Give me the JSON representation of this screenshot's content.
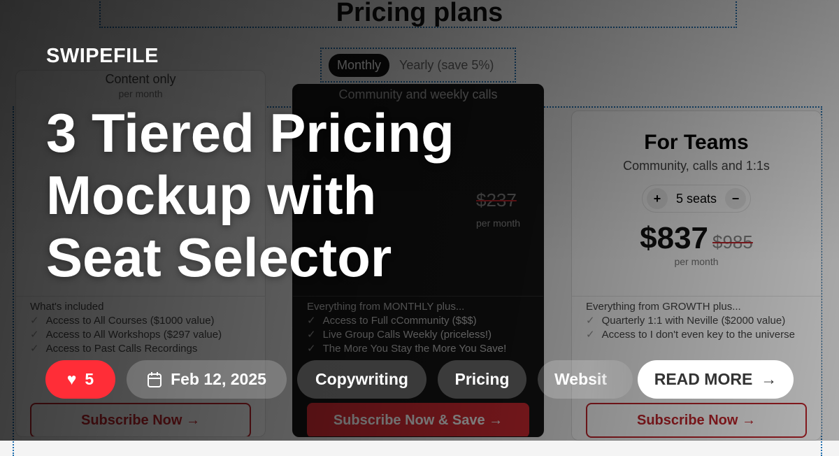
{
  "background": {
    "page_title": "Pricing plans",
    "toggle": {
      "monthly": "Monthly",
      "yearly": "Yearly (save 5%)"
    },
    "cards": [
      {
        "subtitle": "Content only",
        "per": "per month",
        "features_header": "What's included",
        "features": [
          "Access to All Courses ($1000 value)",
          "Access to All Workshops ($297 value)",
          "Access to Past Calls Recordings"
        ],
        "button": "Subscribe Now →"
      },
      {
        "subtitle": "Community and weekly calls",
        "old_price": "$237",
        "per": "per month",
        "features_header": "Everything from MONTHLY plus...",
        "features": [
          "Access to Full cCommunity ($$$)",
          "Live Group Calls Weekly (priceless!)",
          "The More You Stay the More You Save!"
        ],
        "button": "Subscribe Now & Save →"
      },
      {
        "title": "For Teams",
        "subtitle": "Community, calls and 1:1s",
        "seats": "5 seats",
        "price": "$837",
        "old_price": "$985",
        "per": "per month",
        "features_header": "Everything from GROWTH plus...",
        "features": [
          "Quarterly 1:1 with Neville ($2000 value)",
          "Access to I don't even key to the universe"
        ],
        "button": "Subscribe Now →"
      }
    ]
  },
  "brand": "SWIPEFILE",
  "title": "3 Tiered Pricing Mockup with Seat Selector",
  "likes": "5",
  "date": "Feb 12, 2025",
  "tags": [
    "Copywriting",
    "Pricing",
    "Websit"
  ],
  "read_more": "READ MORE",
  "colors": {
    "like": "#ff2d37",
    "accent": "#c0242b"
  }
}
